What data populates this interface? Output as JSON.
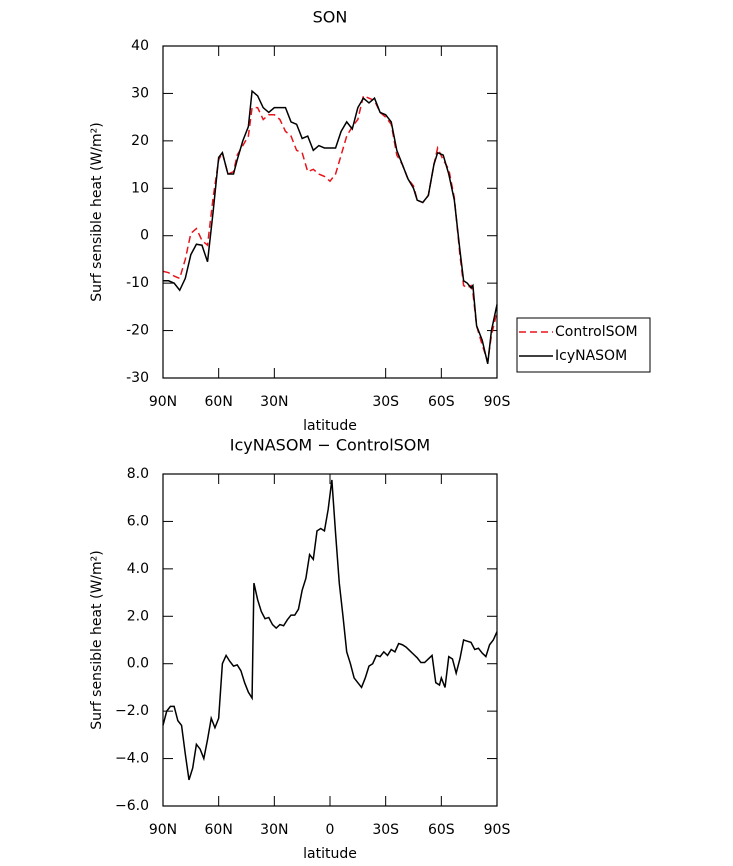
{
  "chart_data": [
    {
      "type": "line",
      "title": "SON",
      "xlabel": "latitude",
      "ylabel": "Surf sensible heat (W/m²)",
      "x": [
        90,
        87,
        84,
        81,
        78,
        75,
        72,
        69,
        66,
        63,
        60,
        58,
        55,
        52,
        50,
        47,
        44,
        42,
        39,
        36,
        33,
        30,
        27,
        24,
        21,
        18,
        15,
        12,
        9,
        6,
        3,
        0,
        -3,
        -6,
        -9,
        -12,
        -15,
        -18,
        -21,
        -24,
        -27,
        -30,
        -33,
        -36,
        -39,
        -42,
        -45,
        -47,
        -50,
        -53,
        -56,
        -58,
        -61,
        -64,
        -67,
        -70,
        -72,
        -74,
        -76,
        -77,
        -79,
        -82,
        -85,
        -87,
        -90
      ],
      "series": [
        {
          "name": "ControlSOM",
          "color": "#e8141b",
          "linestyle": "dashed",
          "values": [
            -7.5,
            -7.8,
            -8.5,
            -9,
            -5,
            0.5,
            1.5,
            -1,
            -2,
            8,
            16,
            17.5,
            13,
            13.5,
            17,
            19,
            21,
            27,
            27,
            24.5,
            25.5,
            25.5,
            24.5,
            22,
            21,
            18,
            17.5,
            13.5,
            14,
            13,
            12.5,
            11.5,
            13,
            17,
            21,
            23,
            24.5,
            29.5,
            29,
            28.5,
            26,
            25,
            23.5,
            17,
            15,
            12,
            10.5,
            7.5,
            7,
            8.5,
            15,
            18.5,
            16,
            14,
            8,
            -4,
            -10.5,
            -11,
            -10.5,
            -12,
            -19,
            -23,
            -26.5,
            -21,
            -16
          ]
        },
        {
          "name": "IcyNASOM",
          "color": "#000000",
          "linestyle": "solid",
          "values": [
            -9.5,
            -9.5,
            -10,
            -11.5,
            -9,
            -4,
            -1.8,
            -2,
            -5.5,
            5,
            16.5,
            17.5,
            13,
            13,
            16,
            20,
            23,
            30.5,
            29.5,
            27,
            26,
            27,
            27,
            27,
            24,
            23.5,
            20.5,
            21,
            18,
            19,
            18.5,
            18.5,
            18.5,
            22,
            24,
            22.5,
            27,
            29,
            28,
            29,
            26,
            25.5,
            24,
            18,
            15,
            12,
            10,
            7.5,
            7,
            8.5,
            15,
            17.5,
            17,
            13,
            7.5,
            -3,
            -9.5,
            -10,
            -11,
            -10.5,
            -19,
            -22,
            -27,
            -20,
            -14.5
          ]
        }
      ],
      "xlim": [
        90,
        -90
      ],
      "xticks": [
        {
          "value": 90,
          "label": "90N"
        },
        {
          "value": 60,
          "label": "60N"
        },
        {
          "value": 30,
          "label": "30N"
        },
        {
          "value": -30,
          "label": "30S"
        },
        {
          "value": -60,
          "label": "60S"
        },
        {
          "value": -90,
          "label": "90S"
        }
      ],
      "ylim": [
        -30,
        40
      ],
      "yticks": [
        -30,
        -20,
        -10,
        0,
        10,
        20,
        30,
        40
      ],
      "legend": "right"
    },
    {
      "type": "line",
      "title": "IcyNASOM − ControlSOM",
      "xlabel": "latitude",
      "ylabel": "Surf sensible heat (W/m²)",
      "x": [
        90,
        88,
        86,
        84,
        82,
        80,
        78,
        76,
        74,
        72,
        70,
        68,
        66,
        64,
        62,
        60,
        58,
        56,
        54,
        52,
        50,
        48,
        46,
        44,
        42,
        41,
        39,
        37,
        35,
        33,
        31,
        29,
        27,
        25,
        23,
        21,
        19,
        17,
        15,
        13,
        11,
        9,
        7,
        5,
        3,
        1,
        -1,
        -3,
        -5,
        -7,
        -9,
        -11,
        -13,
        -15,
        -17,
        -19,
        -21,
        -23,
        -25,
        -27,
        -29,
        -31,
        -33,
        -35,
        -37,
        -39,
        -41,
        -43,
        -45,
        -47,
        -49,
        -51,
        -53,
        -55,
        -57,
        -59,
        -60,
        -62,
        -64,
        -66,
        -68,
        -70,
        -72,
        -74,
        -76,
        -78,
        -80,
        -82,
        -84,
        -86,
        -88,
        -90
      ],
      "series": [
        {
          "name": null,
          "color": "#000000",
          "linestyle": "solid",
          "values": [
            -2.6,
            -2,
            -1.8,
            -1.8,
            -2.4,
            -2.6,
            -3.8,
            -4.9,
            -4.4,
            -3.4,
            -3.6,
            -4,
            -3.2,
            -2.3,
            -2.7,
            -2.3,
            0,
            0.35,
            0.1,
            -0.1,
            -0.05,
            -0.3,
            -0.8,
            -1.2,
            -1.45,
            3.4,
            2.7,
            2.2,
            1.9,
            1.95,
            1.65,
            1.5,
            1.65,
            1.6,
            1.85,
            2.05,
            2.05,
            2.3,
            3.1,
            3.6,
            4.6,
            4.4,
            5.6,
            5.7,
            5.6,
            6.5,
            7.75,
            5.5,
            3.4,
            2,
            0.5,
            0,
            -0.6,
            -0.8,
            -1,
            -0.6,
            -0.1,
            0,
            0.35,
            0.3,
            0.5,
            0.35,
            0.6,
            0.5,
            0.85,
            0.8,
            0.7,
            0.55,
            0.4,
            0.25,
            0.05,
            0.05,
            0.2,
            0.35,
            -0.8,
            -0.9,
            -0.6,
            -1,
            0.3,
            0.2,
            -0.4,
            0.2,
            1,
            0.95,
            0.9,
            0.6,
            0.65,
            0.45,
            0.3,
            0.8,
            1,
            1.35
          ]
        }
      ],
      "xlim": [
        90,
        -90
      ],
      "xticks": [
        {
          "value": 90,
          "label": "90N"
        },
        {
          "value": 60,
          "label": "60N"
        },
        {
          "value": 30,
          "label": "30N"
        },
        0,
        {
          "value": -30,
          "label": "30S"
        },
        {
          "value": -60,
          "label": "60S"
        },
        {
          "value": -90,
          "label": "90S"
        }
      ],
      "ylim": [
        -6,
        8
      ],
      "yticks": [
        {
          "value": -6,
          "label": "−6.0"
        },
        {
          "value": -4,
          "label": "−4.0"
        },
        {
          "value": -2,
          "label": "−2.0"
        },
        {
          "value": 0,
          "label": "0.0"
        },
        {
          "value": 2,
          "label": "2.0"
        },
        {
          "value": 4,
          "label": "4.0"
        },
        {
          "value": 6,
          "label": "6.0"
        },
        {
          "value": 8,
          "label": "8.0"
        }
      ]
    }
  ]
}
